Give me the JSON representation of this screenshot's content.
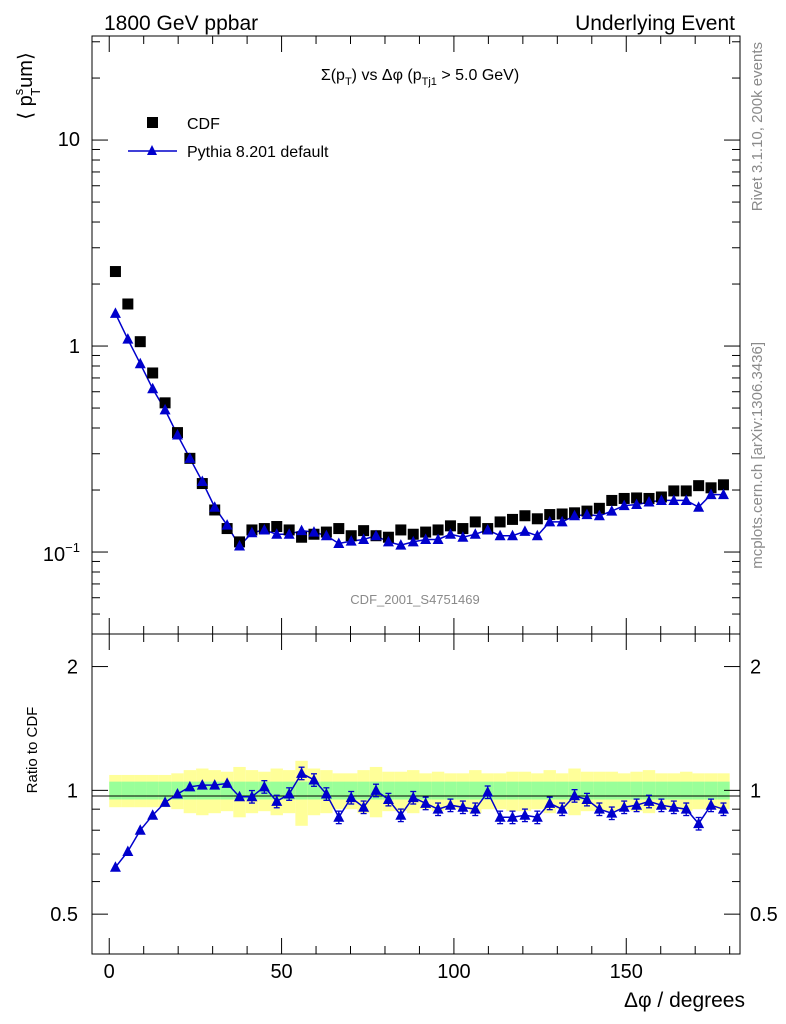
{
  "header": {
    "left": "1800 GeV ppbar",
    "right": "Underlying Event"
  },
  "side_labels": {
    "top": "Rivet 3.1.10,  200k events",
    "bottom": "mcplots.cern.ch [arXiv:1306.3436]"
  },
  "watermark": "CDF_2001_S4751469",
  "colors": {
    "data": "#000000",
    "mc": "#0000cc",
    "band_inner": "#99ff99",
    "band_outer": "#ffff99"
  },
  "chart_data": [
    {
      "type": "scatter",
      "title_parts": {
        "sigma": "Σ(p",
        "t": "T",
        "vs": ") vs Δφ (p",
        "tj1": "Tj1",
        "cut": " > 5.0 GeV)"
      },
      "ylabel_parts": {
        "open": "⟨ p",
        "s": "s",
        "t": "T",
        "tail": "um⟩"
      },
      "xlim": [
        -5,
        183
      ],
      "ylim": [
        0.04,
        32
      ],
      "yscale": "log",
      "ytick_labels": {
        "ten": "10",
        "one": "1",
        "tenth_base": "10",
        "tenth_exp": "−1"
      },
      "legend": {
        "position": "top-left",
        "data_label": "CDF",
        "mc_label": "Pythia 8.201 default"
      },
      "x": [
        1.8,
        5.4,
        9,
        12.6,
        16.2,
        19.8,
        23.4,
        27,
        30.6,
        34.2,
        37.8,
        41.4,
        45,
        48.6,
        52.2,
        55.8,
        59.4,
        63,
        66.6,
        70.2,
        73.8,
        77.4,
        81,
        84.6,
        88.2,
        91.8,
        95.4,
        99,
        102.6,
        106.2,
        109.8,
        113.4,
        117,
        120.6,
        124.2,
        127.8,
        131.4,
        135,
        138.6,
        142.2,
        145.8,
        149.4,
        153,
        156.6,
        160.2,
        163.8,
        167.4,
        171,
        174.6,
        178.2
      ],
      "series": [
        {
          "name": "CDF",
          "marker": "square",
          "values": [
            2.3,
            1.6,
            1.05,
            0.74,
            0.53,
            0.38,
            0.285,
            0.215,
            0.16,
            0.13,
            0.112,
            0.128,
            0.13,
            0.133,
            0.128,
            0.118,
            0.122,
            0.125,
            0.13,
            0.12,
            0.127,
            0.12,
            0.118,
            0.128,
            0.122,
            0.125,
            0.128,
            0.134,
            0.13,
            0.14,
            0.13,
            0.14,
            0.144,
            0.15,
            0.145,
            0.152,
            0.153,
            0.155,
            0.158,
            0.163,
            0.178,
            0.182,
            0.183,
            0.182,
            0.185,
            0.198,
            0.198,
            0.21,
            0.205,
            0.212
          ]
        },
        {
          "name": "Pythia 8.201 default",
          "marker": "triangle",
          "values": [
            1.44,
            1.08,
            0.82,
            0.62,
            0.49,
            0.37,
            0.285,
            0.22,
            0.165,
            0.135,
            0.107,
            0.124,
            0.128,
            0.122,
            0.122,
            0.127,
            0.125,
            0.12,
            0.11,
            0.113,
            0.115,
            0.12,
            0.112,
            0.108,
            0.112,
            0.115,
            0.115,
            0.122,
            0.118,
            0.122,
            0.128,
            0.12,
            0.12,
            0.126,
            0.12,
            0.14,
            0.14,
            0.15,
            0.152,
            0.15,
            0.158,
            0.168,
            0.17,
            0.175,
            0.178,
            0.178,
            0.178,
            0.165,
            0.19,
            0.19
          ]
        }
      ]
    },
    {
      "type": "line",
      "ylabel": "Ratio to CDF",
      "xlabel_parts": {
        "delta": "Δφ",
        "unit": " / degrees"
      },
      "xlim": [
        -5,
        183
      ],
      "ylim": [
        0.4,
        2.4
      ],
      "yscale": "log",
      "xticks": [
        0,
        50,
        100,
        150
      ],
      "yticks": [
        0.5,
        1,
        2
      ],
      "x": [
        1.8,
        5.4,
        9,
        12.6,
        16.2,
        19.8,
        23.4,
        27,
        30.6,
        34.2,
        37.8,
        41.4,
        45,
        48.6,
        52.2,
        55.8,
        59.4,
        63,
        66.6,
        70.2,
        73.8,
        77.4,
        81,
        84.6,
        88.2,
        91.8,
        95.4,
        99,
        102.6,
        106.2,
        109.8,
        113.4,
        117,
        120.6,
        124.2,
        127.8,
        131.4,
        135,
        138.6,
        142.2,
        145.8,
        149.4,
        153,
        156.6,
        160.2,
        163.8,
        167.4,
        171,
        174.6,
        178.2
      ],
      "series": [
        {
          "name": "Pythia 8.201 default",
          "values": [
            0.65,
            0.71,
            0.8,
            0.87,
            0.935,
            0.98,
            1.02,
            1.03,
            1.03,
            1.04,
            0.965,
            0.965,
            1.02,
            0.94,
            0.98,
            1.1,
            1.06,
            0.98,
            0.86,
            0.96,
            0.91,
            1.0,
            0.95,
            0.87,
            0.96,
            0.93,
            0.9,
            0.92,
            0.91,
            0.9,
            0.99,
            0.86,
            0.86,
            0.87,
            0.86,
            0.93,
            0.9,
            0.97,
            0.95,
            0.9,
            0.88,
            0.91,
            0.92,
            0.94,
            0.92,
            0.91,
            0.9,
            0.83,
            0.92,
            0.9
          ]
        },
        {
          "name": "stat-band",
          "values": [
            0.05,
            0.05,
            0.05,
            0.05,
            0.05,
            0.05,
            0.05,
            0.05,
            0.05,
            0.05,
            0.05,
            0.05,
            0.05,
            0.05,
            0.05,
            0.05,
            0.05,
            0.05,
            0.05,
            0.05,
            0.05,
            0.05,
            0.05,
            0.05,
            0.05,
            0.05,
            0.05,
            0.05,
            0.05,
            0.05,
            0.05,
            0.05,
            0.05,
            0.05,
            0.05,
            0.05,
            0.05,
            0.05,
            0.05,
            0.05,
            0.05,
            0.05,
            0.05,
            0.05,
            0.05,
            0.05,
            0.05,
            0.05,
            0.05,
            0.05
          ]
        },
        {
          "name": "total-band",
          "values": [
            0.09,
            0.09,
            0.09,
            0.09,
            0.09,
            0.1,
            0.12,
            0.13,
            0.12,
            0.11,
            0.14,
            0.12,
            0.11,
            0.13,
            0.12,
            0.18,
            0.13,
            0.12,
            0.1,
            0.1,
            0.12,
            0.14,
            0.11,
            0.11,
            0.12,
            0.1,
            0.11,
            0.1,
            0.1,
            0.12,
            0.1,
            0.1,
            0.11,
            0.11,
            0.1,
            0.12,
            0.1,
            0.13,
            0.11,
            0.11,
            0.11,
            0.1,
            0.11,
            0.12,
            0.1,
            0.1,
            0.11,
            0.1,
            0.1,
            0.1
          ]
        }
      ]
    }
  ]
}
